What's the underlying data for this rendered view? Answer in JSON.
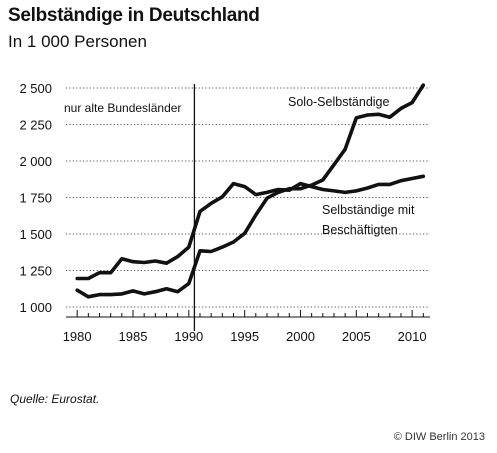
{
  "chart_data": {
    "type": "line",
    "title": "Selbständige in Deutschland",
    "subtitle": "In 1 000 Personen",
    "xlabel": "",
    "ylabel": "",
    "xlim": [
      1979,
      2011.6
    ],
    "ylim": [
      1000,
      2500
    ],
    "x_ticks": [
      1980,
      1985,
      1990,
      1995,
      2000,
      2005,
      2010
    ],
    "x_tick_labels": [
      "1980",
      "1985",
      "1990",
      "1995",
      "2000",
      "2005",
      "2010"
    ],
    "y_ticks": [
      1000,
      1250,
      1500,
      1750,
      2000,
      2250,
      2500
    ],
    "y_tick_labels": [
      "1 000",
      "1 250",
      "1 500",
      "1 750",
      "2 000",
      "2 250",
      "2 500"
    ],
    "grid": "horizontal-dotted",
    "series": [
      {
        "name": "Selbständige mit Beschäftigten",
        "x": [
          1980,
          1981,
          1982,
          1983,
          1984,
          1985,
          1986,
          1987,
          1988,
          1989,
          1990,
          1991,
          1992,
          1993,
          1994,
          1995,
          1996,
          1997,
          1998,
          1999,
          2000,
          2001,
          2002,
          2003,
          2004,
          2005,
          2006,
          2007,
          2008,
          2009,
          2010,
          2011
        ],
        "values": [
          1195,
          1195,
          1235,
          1235,
          1330,
          1310,
          1305,
          1315,
          1300,
          1345,
          1410,
          1655,
          1710,
          1755,
          1845,
          1825,
          1770,
          1785,
          1805,
          1800,
          1845,
          1825,
          1805,
          1795,
          1785,
          1795,
          1815,
          1840,
          1840,
          1865,
          1880,
          1895
        ],
        "color": "#111111"
      },
      {
        "name": "Solo-Selbständige",
        "x": [
          1980,
          1981,
          1982,
          1983,
          1984,
          1985,
          1986,
          1987,
          1988,
          1989,
          1990,
          1991,
          1992,
          1993,
          1994,
          1995,
          1996,
          1997,
          1998,
          1999,
          2000,
          2001,
          2002,
          2003,
          2004,
          2005,
          2006,
          2007,
          2008,
          2009,
          2010,
          2011
        ],
        "values": [
          1115,
          1070,
          1085,
          1085,
          1090,
          1110,
          1090,
          1105,
          1125,
          1105,
          1160,
          1385,
          1380,
          1410,
          1445,
          1505,
          1630,
          1745,
          1785,
          1810,
          1810,
          1835,
          1870,
          1975,
          2080,
          2295,
          2315,
          2320,
          2300,
          2360,
          2400,
          2520
        ],
        "color": "#111111"
      }
    ],
    "annotations": [
      {
        "text": "nur alte Bundesländer",
        "x_line": 1990.5
      },
      {
        "text": "Solo-Selbständige"
      },
      {
        "text": "Selbständige mit",
        "text2": "Beschäftigten"
      }
    ],
    "source": "Quelle: Eurostat.",
    "credit": "© DIW Berlin 2013"
  }
}
